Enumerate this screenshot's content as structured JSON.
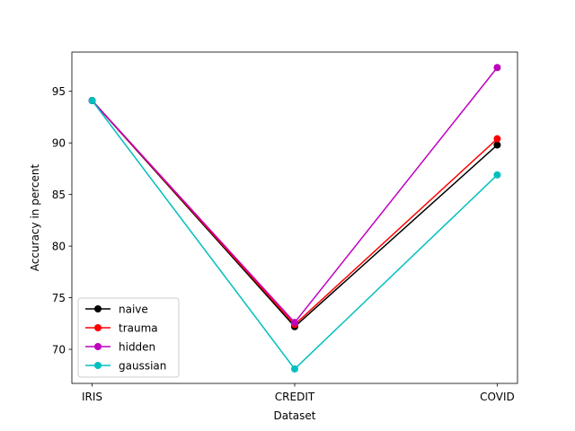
{
  "chart_data": {
    "type": "line",
    "title": "",
    "xlabel": "Dataset",
    "ylabel": "Accuracy in percent",
    "categories": [
      "IRIS",
      "CREDIT",
      "COVID"
    ],
    "ylim": [
      66.7,
      98.8
    ],
    "yticks": [
      70,
      75,
      80,
      85,
      90,
      95
    ],
    "grid": false,
    "legend_position": "lower-left",
    "series": [
      {
        "name": "naive",
        "color": "#000000",
        "values": [
          94.1,
          72.2,
          89.8
        ]
      },
      {
        "name": "trauma",
        "color": "#ff0000",
        "values": [
          94.1,
          72.4,
          90.4
        ]
      },
      {
        "name": "hidden",
        "color": "#bf00bf",
        "values": [
          94.1,
          72.6,
          97.3
        ]
      },
      {
        "name": "gaussian",
        "color": "#00bfbf",
        "values": [
          94.1,
          68.1,
          86.9
        ]
      }
    ]
  }
}
